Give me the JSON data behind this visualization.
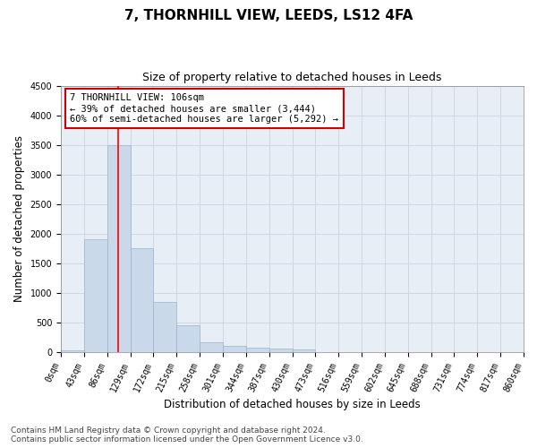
{
  "title": "7, THORNHILL VIEW, LEEDS, LS12 4FA",
  "subtitle": "Size of property relative to detached houses in Leeds",
  "xlabel": "Distribution of detached houses by size in Leeds",
  "ylabel": "Number of detached properties",
  "bar_edges": [
    0,
    43,
    86,
    129,
    172,
    215,
    258,
    301,
    344,
    387,
    430,
    473,
    516,
    559,
    602,
    645,
    688,
    731,
    774,
    817,
    860
  ],
  "bar_heights": [
    30,
    1900,
    3500,
    1750,
    850,
    450,
    160,
    100,
    70,
    55,
    50,
    0,
    0,
    0,
    0,
    0,
    0,
    0,
    0,
    0
  ],
  "bar_color": "#c9d9ea",
  "bar_edge_color": "#9ab5cc",
  "red_line_x": 106,
  "annotation_text": "7 THORNHILL VIEW: 106sqm\n← 39% of detached houses are smaller (3,444)\n60% of semi-detached houses are larger (5,292) →",
  "annotation_box_color": "#ffffff",
  "annotation_edge_color": "#cc0000",
  "ylim": [
    0,
    4500
  ],
  "yticks": [
    0,
    500,
    1000,
    1500,
    2000,
    2500,
    3000,
    3500,
    4000,
    4500
  ],
  "xtick_labels": [
    "0sqm",
    "43sqm",
    "86sqm",
    "129sqm",
    "172sqm",
    "215sqm",
    "258sqm",
    "301sqm",
    "344sqm",
    "387sqm",
    "430sqm",
    "473sqm",
    "516sqm",
    "559sqm",
    "602sqm",
    "645sqm",
    "688sqm",
    "731sqm",
    "774sqm",
    "817sqm",
    "860sqm"
  ],
  "footer_line1": "Contains HM Land Registry data © Crown copyright and database right 2024.",
  "footer_line2": "Contains public sector information licensed under the Open Government Licence v3.0.",
  "background_color": "#ffffff",
  "plot_bg_color": "#e8eef5",
  "grid_color": "#c8d4e0",
  "title_fontsize": 11,
  "subtitle_fontsize": 9,
  "axis_label_fontsize": 8.5,
  "tick_fontsize": 7,
  "annotation_fontsize": 7.5,
  "footer_fontsize": 6.5
}
